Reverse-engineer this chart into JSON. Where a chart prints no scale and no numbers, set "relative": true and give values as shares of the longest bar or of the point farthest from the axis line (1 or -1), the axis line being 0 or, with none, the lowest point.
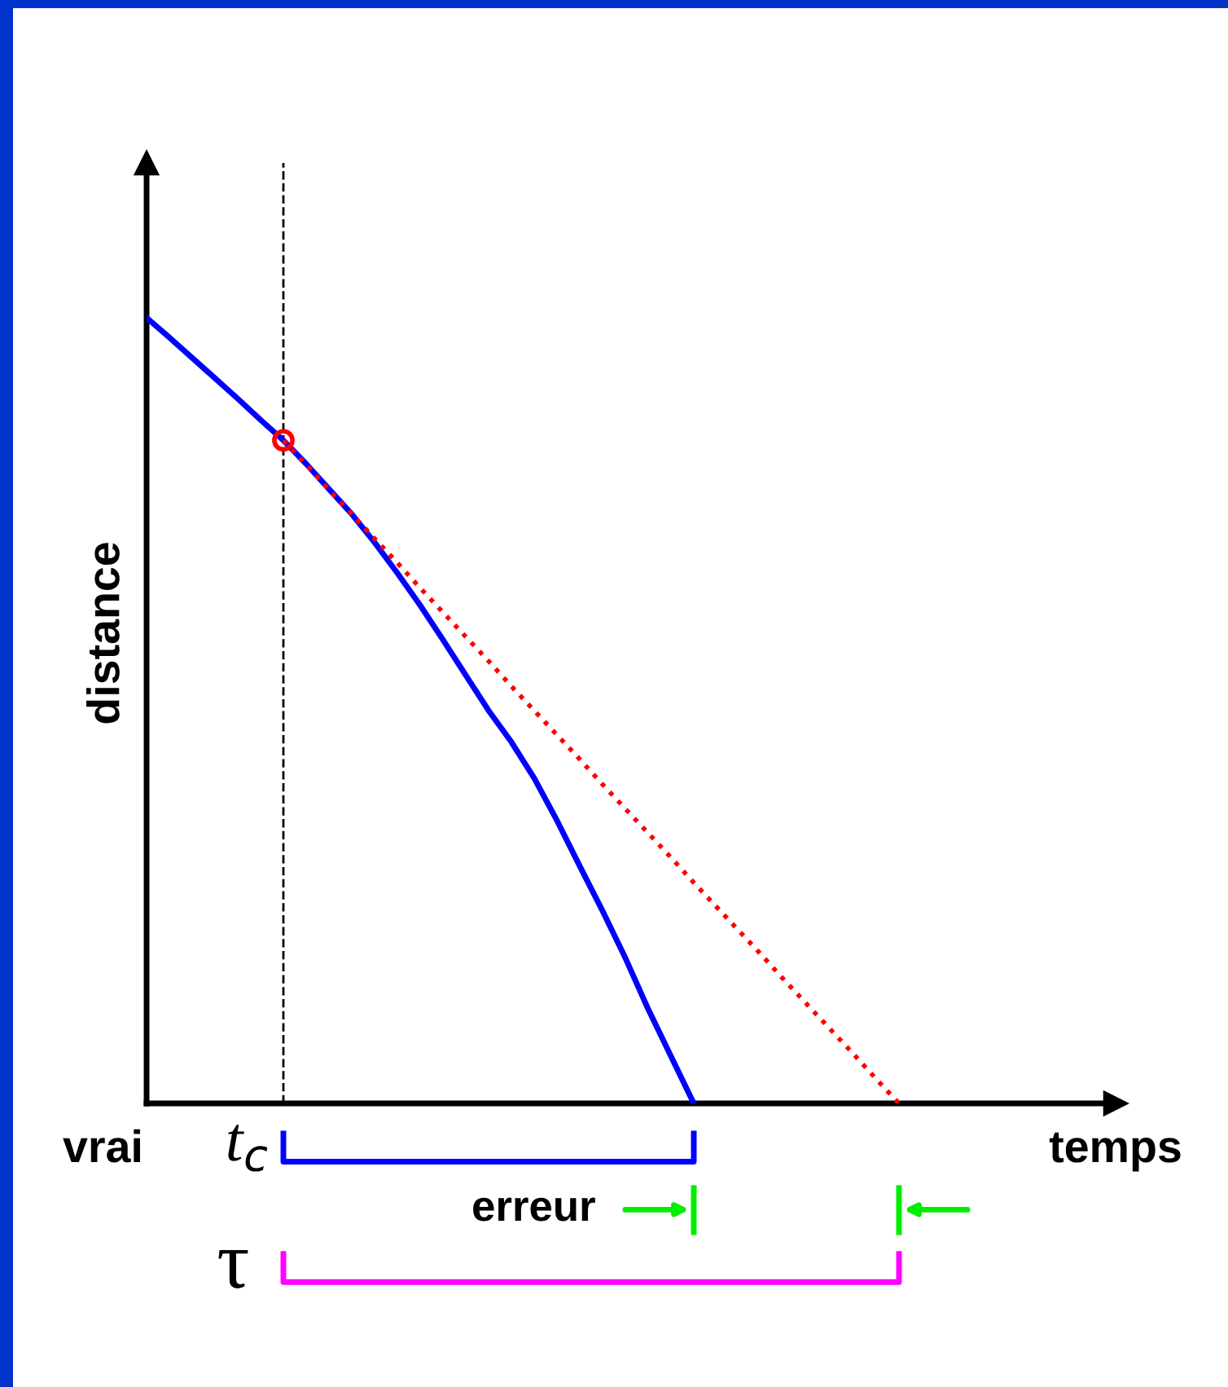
{
  "chart_data": {
    "type": "line",
    "relative": true,
    "xlabel": "temps",
    "ylabel": "distance",
    "categories": [
      null,
      null,
      null,
      null,
      null,
      null,
      null,
      null,
      null,
      null,
      null,
      null,
      null,
      null,
      null,
      null,
      null,
      null,
      null,
      null,
      null,
      null,
      null,
      null,
      null,
      null,
      null,
      null,
      null,
      null,
      null,
      null,
      null,
      null,
      null,
      null,
      null,
      null,
      null,
      null,
      null,
      null,
      null
    ],
    "series": [
      {
        "color": "#0000ff",
        "values": [
          1.0,
          0.975,
          0.949,
          0.923,
          0.897,
          0.87,
          0.844,
          0.814,
          0.782,
          0.75,
          0.714,
          0.675,
          0.634,
          0.59,
          0.545,
          0.5,
          0.46,
          0.414,
          0.36,
          0.302,
          0.245,
          0.185,
          0.12,
          0.06,
          0,
          null,
          null,
          null,
          null,
          null,
          null,
          null,
          null,
          null,
          null,
          null,
          null,
          null,
          null,
          null,
          null,
          null,
          null
        ]
      },
      {
        "color": "#ff0000",
        "line_style": "dotted",
        "values": [
          null,
          null,
          null,
          null,
          null,
          null,
          0.844,
          0.813,
          0.781,
          0.75,
          0.719,
          0.688,
          0.656,
          0.625,
          0.594,
          0.563,
          0.531,
          0.5,
          0.469,
          0.438,
          0.406,
          0.375,
          0.344,
          0.313,
          0.281,
          0.25,
          0.219,
          0.188,
          0.156,
          0.125,
          0.094,
          0.063,
          0.031,
          0,
          null,
          null,
          null,
          null,
          null,
          null,
          null,
          null,
          null
        ]
      }
    ],
    "annotations": [
      "vrai",
      "t$_{c}$",
      "erreur",
      "τ"
    ]
  }
}
